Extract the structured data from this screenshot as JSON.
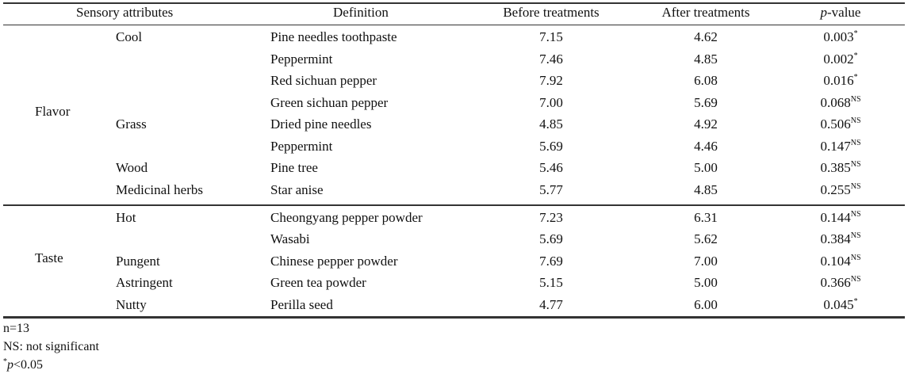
{
  "header": {
    "attributes": "Sensory attributes",
    "definition": "Definition",
    "before": "Before treatments",
    "after": "After treatments",
    "p_italic": "p",
    "p_rest": "-value"
  },
  "groups": [
    {
      "label": "Flavor"
    },
    {
      "label": "Taste"
    }
  ],
  "rows": [
    {
      "sub": "Cool",
      "def": "Pine needles toothpaste",
      "before": "7.15",
      "after": "4.62",
      "p": "0.003",
      "sig": "*"
    },
    {
      "sub": "",
      "def": "Peppermint",
      "before": "7.46",
      "after": "4.85",
      "p": "0.002",
      "sig": "*"
    },
    {
      "sub": "",
      "def": "Red sichuan pepper",
      "before": "7.92",
      "after": "6.08",
      "p": "0.016",
      "sig": "*"
    },
    {
      "sub": "",
      "def": "Green sichuan pepper",
      "before": "7.00",
      "after": "5.69",
      "p": "0.068",
      "sig": "NS"
    },
    {
      "sub": "Grass",
      "def": "Dried pine needles",
      "before": "4.85",
      "after": "4.92",
      "p": "0.506",
      "sig": "NS"
    },
    {
      "sub": "",
      "def": "Peppermint",
      "before": "5.69",
      "after": "4.46",
      "p": "0.147",
      "sig": "NS"
    },
    {
      "sub": "Wood",
      "def": "Pine tree",
      "before": "5.46",
      "after": "5.00",
      "p": "0.385",
      "sig": "NS"
    },
    {
      "sub": "Medicinal herbs",
      "def": "Star anise",
      "before": "5.77",
      "after": "4.85",
      "p": "0.255",
      "sig": "NS"
    },
    {
      "sub": "Hot",
      "def": "Cheongyang pepper powder",
      "before": "7.23",
      "after": "6.31",
      "p": "0.144",
      "sig": "NS"
    },
    {
      "sub": "",
      "def": "Wasabi",
      "before": "5.69",
      "after": "5.62",
      "p": "0.384",
      "sig": "NS"
    },
    {
      "sub": "Pungent",
      "def": "Chinese pepper powder",
      "before": "7.69",
      "after": "7.00",
      "p": "0.104",
      "sig": "NS"
    },
    {
      "sub": "Astringent",
      "def": "Green tea powder",
      "before": "5.15",
      "after": "5.00",
      "p": "0.366",
      "sig": "NS"
    },
    {
      "sub": "Nutty",
      "def": "Perilla seed",
      "before": "4.77",
      "after": "6.00",
      "p": "0.045",
      "sig": "*"
    }
  ],
  "notes": {
    "n": "n=13",
    "ns": "NS: not significant",
    "sig_mark": "*",
    "sig_p": "p",
    "sig_rest": "<0.05"
  }
}
